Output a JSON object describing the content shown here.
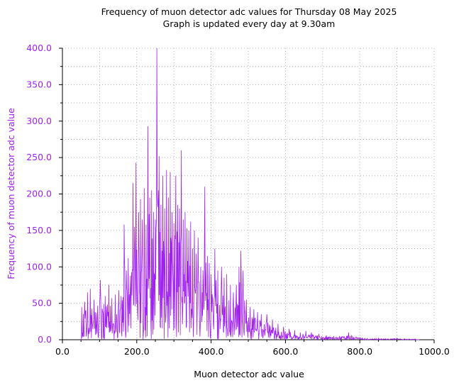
{
  "colors": {
    "series": "#a020f0",
    "axis": "#000000",
    "grid": "#a0a0a0",
    "background": "#ffffff"
  },
  "chart_data": {
    "type": "line",
    "title": [
      "Frequency of muon detector adc values for Thursday 08 May 2025",
      "Graph is updated every day at 9.30am"
    ],
    "xlabel": "Muon detector adc value",
    "ylabel": "Frequency of muon detector adc value",
    "xlim": [
      0,
      1000
    ],
    "ylim": [
      0,
      400
    ],
    "xticks": [
      "0.0",
      "200.0",
      "400.0",
      "600.0",
      "800.0",
      "1000.0"
    ],
    "yticks": [
      "0.0",
      "50.0",
      "100.0",
      "150.0",
      "200.0",
      "250.0",
      "300.0",
      "350.0",
      "400.0"
    ],
    "grid": true,
    "legend": "none",
    "series": [
      {
        "peaks": [
          [
            52,
            45
          ],
          [
            60,
            52
          ],
          [
            68,
            65
          ],
          [
            75,
            70
          ],
          [
            85,
            55
          ],
          [
            95,
            47
          ],
          [
            102,
            82
          ],
          [
            115,
            60
          ],
          [
            125,
            75
          ],
          [
            133,
            57
          ],
          [
            142,
            62
          ],
          [
            152,
            68
          ],
          [
            158,
            60
          ],
          [
            166,
            158
          ],
          [
            172,
            95
          ],
          [
            177,
            112
          ],
          [
            183,
            88
          ],
          [
            190,
            215
          ],
          [
            194,
            155
          ],
          [
            198,
            243
          ],
          [
            205,
            175
          ],
          [
            210,
            193
          ],
          [
            215,
            165
          ],
          [
            220,
            208
          ],
          [
            225,
            158
          ],
          [
            230,
            293
          ],
          [
            235,
            195
          ],
          [
            240,
            205
          ],
          [
            245,
            175
          ],
          [
            250,
            165
          ],
          [
            254,
            400
          ],
          [
            260,
            252
          ],
          [
            265,
            185
          ],
          [
            270,
            225
          ],
          [
            275,
            180
          ],
          [
            280,
            233
          ],
          [
            285,
            195
          ],
          [
            290,
            230
          ],
          [
            295,
            175
          ],
          [
            300,
            160
          ],
          [
            305,
            225
          ],
          [
            310,
            185
          ],
          [
            315,
            180
          ],
          [
            320,
            260
          ],
          [
            325,
            165
          ],
          [
            330,
            175
          ],
          [
            335,
            153
          ],
          [
            340,
            150
          ],
          [
            345,
            162
          ],
          [
            350,
            125
          ],
          [
            355,
            150
          ],
          [
            360,
            118
          ],
          [
            365,
            140
          ],
          [
            372,
            100
          ],
          [
            378,
            95
          ],
          [
            383,
            210
          ],
          [
            390,
            115
          ],
          [
            395,
            105
          ],
          [
            400,
            90
          ],
          [
            410,
            125
          ],
          [
            418,
            95
          ],
          [
            428,
            100
          ],
          [
            435,
            85
          ],
          [
            442,
            90
          ],
          [
            452,
            75
          ],
          [
            460,
            65
          ],
          [
            468,
            75
          ],
          [
            475,
            100
          ],
          [
            480,
            122
          ],
          [
            486,
            95
          ],
          [
            495,
            55
          ],
          [
            505,
            45
          ],
          [
            515,
            42
          ],
          [
            525,
            38
          ],
          [
            535,
            35
          ],
          [
            550,
            35
          ],
          [
            565,
            28
          ],
          [
            580,
            22
          ],
          [
            595,
            18
          ],
          [
            610,
            15
          ],
          [
            625,
            13
          ],
          [
            640,
            10
          ],
          [
            655,
            12
          ],
          [
            670,
            10
          ],
          [
            690,
            8
          ],
          [
            710,
            6
          ],
          [
            730,
            5
          ],
          [
            745,
            5
          ],
          [
            770,
            10
          ],
          [
            800,
            3
          ],
          [
            850,
            2
          ],
          [
            900,
            2
          ],
          [
            950,
            1
          ]
        ]
      }
    ]
  }
}
